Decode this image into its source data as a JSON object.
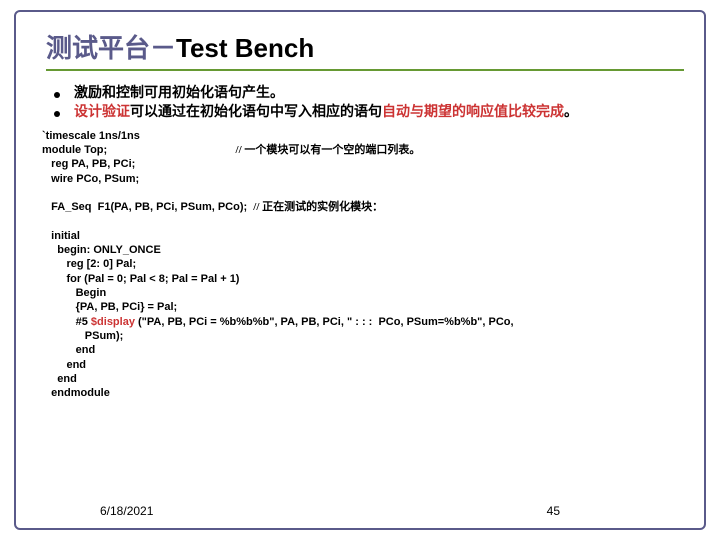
{
  "colors": {
    "border": "#5a5a8a",
    "underline": "#669933",
    "title_cn": "#5a5a8a",
    "title_en": "#000000",
    "highlight": "#cc3333",
    "text": "#000000"
  },
  "title": {
    "cn": "测试平台－",
    "en": "Test Bench"
  },
  "bullets": [
    {
      "parts": [
        {
          "text": "激励和控制可用初始化语句产生。",
          "hl": false
        }
      ]
    },
    {
      "parts": [
        {
          "text": "设计验证",
          "hl": true
        },
        {
          "text": "可以通过在初始化语句中写入相应的语句",
          "hl": false
        },
        {
          "text": "自动与期望的响应值比较完成",
          "hl": true
        },
        {
          "text": "。",
          "hl": false
        }
      ]
    }
  ],
  "code": {
    "lines": [
      "`timescale 1ns/1ns",
      "module Top;                                          // 一个模块可以有一个空的端口列表。",
      "   reg PA, PB, PCi;",
      "   wire PCo, PSum;",
      "",
      "   FA_Seq  F1(PA, PB, PCi, PSum, PCo);  // 正在测试的实例化模块：",
      "",
      "   initial",
      "     begin: ONLY_ONCE",
      "        reg [2: 0] Pal;",
      "        for (Pal = 0; Pal < 8; Pal = Pal + 1)",
      "           Begin",
      "           {PA, PB, PCi} = Pal;",
      "           #5 $display (\"PA, PB, PCi = %b%b%b\", PA, PB, PCi, \" : : :  PCo, PSum=%b%b\", PCo,",
      "              PSum);",
      "           end",
      "        end",
      "     end",
      "   endmodule"
    ],
    "display_hl_line": 13,
    "display_hl_text": "$display"
  },
  "footer": {
    "date": "6/18/2021",
    "page": "45"
  }
}
